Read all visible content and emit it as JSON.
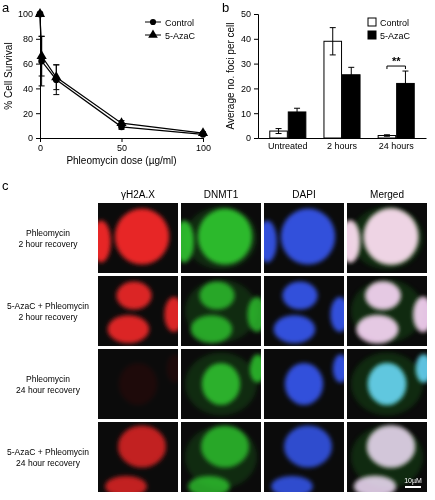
{
  "chart_data": [
    {
      "type": "line",
      "xlabel": "Phleomycin dose (µg/ml)",
      "ylabel": "% Cell Survival",
      "x": [
        0,
        1,
        10,
        50,
        100
      ],
      "series": [
        {
          "name": "Control",
          "color": "#000000",
          "marker": "circle",
          "values": [
            100,
            62,
            47,
            9,
            3
          ],
          "errors": [
            0,
            20,
            12,
            2,
            1
          ]
        },
        {
          "name": "5-AzaC",
          "color": "#000000",
          "marker": "triangle",
          "values": [
            100,
            66,
            49,
            12,
            4
          ],
          "errors": [
            0,
            16,
            10,
            2,
            1
          ]
        }
      ],
      "xlim": [
        0,
        100
      ],
      "xticks": [
        0,
        50,
        100
      ],
      "ylim": [
        0,
        100
      ],
      "yticks": [
        0,
        20,
        40,
        60,
        80,
        100
      ],
      "legend": "top-right",
      "grid": false
    },
    {
      "type": "bar",
      "ylabel": "Average no. foci per cell",
      "categories": [
        "Untreated",
        "2 hours",
        "24 hours"
      ],
      "series": [
        {
          "name": "Control",
          "color": "#ffffff",
          "values": [
            2.8,
            39,
            1
          ],
          "errors": [
            1,
            5.5,
            0.3
          ]
        },
        {
          "name": "5-AzaC",
          "color": "#000000",
          "values": [
            10.5,
            25.5,
            22
          ],
          "errors": [
            1.5,
            3,
            5
          ]
        }
      ],
      "ylim": [
        0,
        50
      ],
      "yticks": [
        0,
        10,
        20,
        30,
        40,
        50
      ],
      "legend": "top-right",
      "grid": false,
      "annotations": [
        {
          "text": "**",
          "x": "24 hours"
        }
      ]
    }
  ],
  "panel_labels": [
    "a",
    "b",
    "c"
  ],
  "image_grid": {
    "columns": [
      "γH2A.X",
      "DNMT1",
      "DAPI",
      "Merged"
    ],
    "rows": [
      [
        "Phleomycin",
        "2 hour recovery"
      ],
      [
        "5-AzaC + Phleomycin",
        "2 hour recovery"
      ],
      [
        "Phleomycin",
        "24 hour recovery"
      ],
      [
        "5-AzaC + Phleomycin",
        "24 hour recovery"
      ]
    ],
    "scale_bar": "10µM"
  }
}
